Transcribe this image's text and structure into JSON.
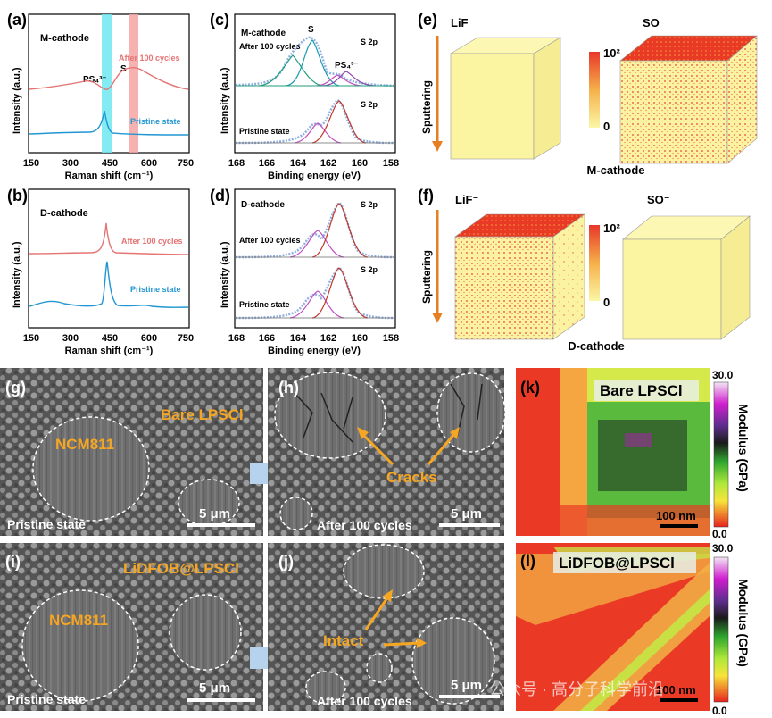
{
  "figure": {
    "panels": {
      "a": {
        "letter": "(a)",
        "title": "M-cathode",
        "ylabel": "Intensity (a.u.)",
        "xlabel": "Raman shift (cm⁻¹)",
        "xticks": [
          "150",
          "300",
          "450",
          "600",
          "750"
        ],
        "peak_ps4": "PS₄³⁻",
        "peak_s": "S",
        "label_after": "After 100 cycles",
        "label_pristine": "Pristine state"
      },
      "b": {
        "letter": "(b)",
        "title": "D-cathode",
        "ylabel": "Intensity (a.u.)",
        "xlabel": "Raman shift (cm⁻¹)",
        "xticks": [
          "150",
          "300",
          "450",
          "600",
          "750"
        ],
        "label_after": "After 100 cycles",
        "label_pristine": "Pristine state"
      },
      "c": {
        "letter": "(c)",
        "title": "M-cathode",
        "ylabel": "Intensity (a.u.)",
        "xlabel": "Binding energy (eV)",
        "xticks": [
          "168",
          "166",
          "164",
          "162",
          "160",
          "158"
        ],
        "label_after": "After 100 cycles",
        "label_pristine": "Pristine state",
        "peak_s": "S",
        "peak_ps4": "PS₄³⁻",
        "s2p_top": "S 2p",
        "s2p_bottom": "S 2p"
      },
      "d": {
        "letter": "(d)",
        "title": "D-cathode",
        "ylabel": "Intensity (a.u.)",
        "xlabel": "Binding energy (eV)",
        "xticks": [
          "168",
          "166",
          "164",
          "162",
          "160",
          "158"
        ],
        "label_after": "After 100 cycles",
        "label_pristine": "Pristine state",
        "s2p_top": "S 2p",
        "s2p_bottom": "S 2p"
      },
      "e": {
        "letter": "(e)",
        "cube1": "LiF⁻",
        "cube2": "SO⁻",
        "sputter": "Sputtering",
        "scale_max": "10²",
        "scale_min": "0",
        "caption": "M-cathode"
      },
      "f": {
        "letter": "(f)",
        "cube1": "LiF⁻",
        "cube2": "SO⁻",
        "sputter": "Sputtering",
        "scale_max": "10²",
        "scale_min": "0",
        "caption": "D-cathode"
      },
      "g": {
        "letter": "(g)",
        "particle": "NCM811",
        "sample": "Bare LPSCl",
        "state": "Pristine state",
        "scalebar": "5 μm"
      },
      "h": {
        "letter": "(h)",
        "annotation": "Cracks",
        "state": "After 100 cycles",
        "scalebar": "5 μm"
      },
      "i": {
        "letter": "(i)",
        "particle": "NCM811",
        "sample": "LiDFOB@LPSCl",
        "state": "Pristine state",
        "scalebar": "5 μm"
      },
      "j": {
        "letter": "(j)",
        "annotation": "Intact",
        "state": "After 100 cycles",
        "scalebar": "5 μm"
      },
      "k": {
        "letter": "(k)",
        "sample": "Bare LPSCl",
        "scalebar": "100 nm",
        "cbar_label": "Modulus (GPa)",
        "cbar_max": "30.0",
        "cbar_min": "0.0"
      },
      "l": {
        "letter": "(l)",
        "sample": "LiDFOB@LPSCl",
        "scalebar": "100 nm",
        "cbar_label": "Modulus (GPa)",
        "cbar_max": "30.0",
        "cbar_min": "0.0"
      }
    },
    "watermark": "公众号 · 高分子科学前沿",
    "colors": {
      "after_line": "#e57373",
      "pristine_line": "#2196d3",
      "ps4_band": "#6fe8f0",
      "s_band": "#f4a3a3",
      "fit_red": "#c0392b",
      "fit_green": "#1f9d7a",
      "fit_magenta": "#c04fc0",
      "fit_purple": "#8e44ad",
      "cube_red": "#e83a25",
      "cube_yellow": "#fbf4a0",
      "sem_text": "#f5a623",
      "arrow_orange": "#e67e22"
    }
  }
}
